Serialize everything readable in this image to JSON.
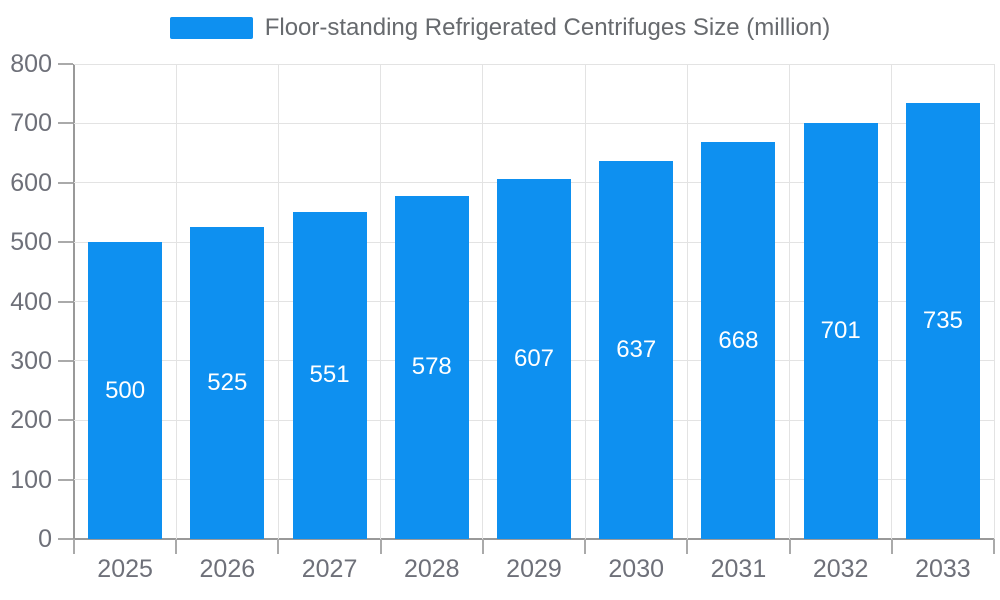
{
  "chart_data": {
    "type": "bar",
    "title": "Floor-standing Refrigerated Centrifuges Size (million)",
    "categories": [
      "2025",
      "2026",
      "2027",
      "2028",
      "2029",
      "2030",
      "2031",
      "2032",
      "2033"
    ],
    "values": [
      500,
      525,
      551,
      578,
      607,
      637,
      668,
      701,
      735
    ],
    "xlabel": "",
    "ylabel": "",
    "ylim": [
      0,
      800
    ],
    "ytick_step": 100,
    "grid": true,
    "legend_position": "top",
    "value_labels": "inside-center"
  },
  "colors": {
    "bar": "#0e90f0",
    "axis": "#999999",
    "grid": "#e3e3e3",
    "tick_label": "#6e7079",
    "legend_text": "#676a6e",
    "value_label": "#ffffff",
    "background": "#ffffff"
  }
}
